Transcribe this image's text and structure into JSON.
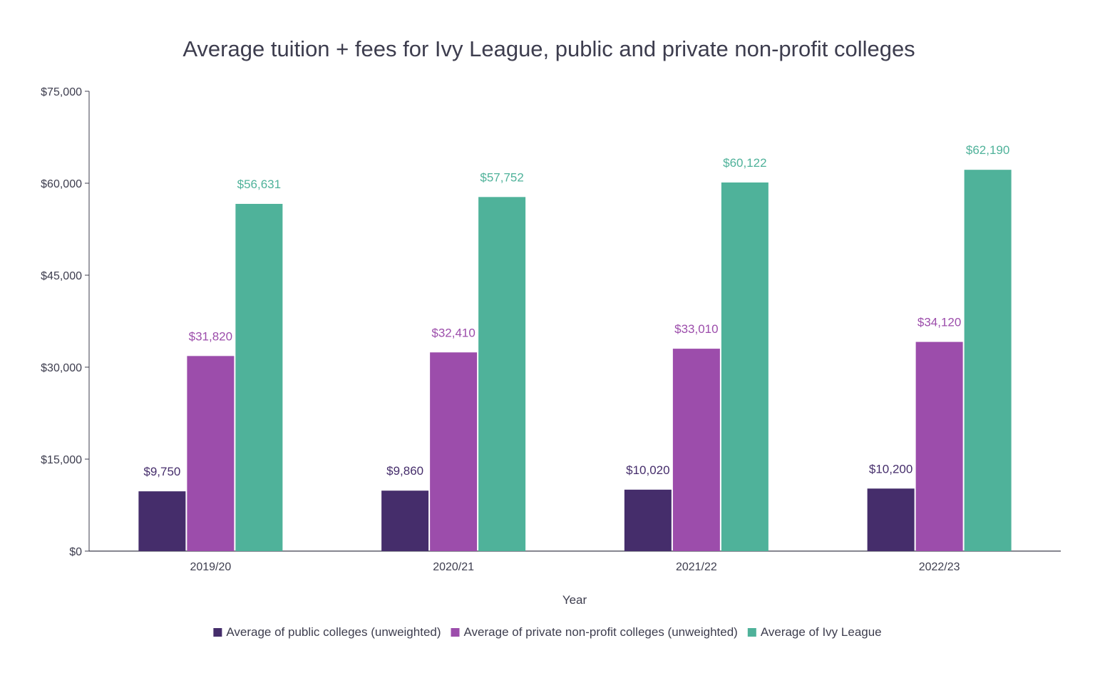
{
  "chart_data": {
    "type": "bar",
    "title": "Average tuition + fees for Ivy League, public and private non-profit colleges",
    "xlabel": "Year",
    "ylabel": "",
    "categories": [
      "2019/20",
      "2020/21",
      "2021/22",
      "2022/23"
    ],
    "series": [
      {
        "name": "Average of public colleges (unweighted)",
        "color": "#452d6b",
        "values": [
          9750,
          9860,
          10020,
          10200
        ],
        "labels": [
          "$9,750",
          "$9,860",
          "$10,020",
          "$10,200"
        ]
      },
      {
        "name": "Average of private non-profit colleges (unweighted)",
        "color": "#9c4dab",
        "values": [
          31820,
          32410,
          33010,
          34120
        ],
        "labels": [
          "$31,820",
          "$32,410",
          "$33,010",
          "$34,120"
        ]
      },
      {
        "name": "Average of Ivy League",
        "color": "#4fb29a",
        "values": [
          56631,
          57752,
          60122,
          62190
        ],
        "labels": [
          "$56,631",
          "$57,752",
          "$60,122",
          "$62,190"
        ]
      }
    ],
    "ylim": [
      0,
      75000
    ],
    "yticks": [
      0,
      15000,
      30000,
      45000,
      60000,
      75000
    ],
    "ytick_labels": [
      "$0",
      "$15,000",
      "$30,000",
      "$45,000",
      "$60,000",
      "$75,000"
    ],
    "grid": false,
    "legend_position": "bottom"
  }
}
